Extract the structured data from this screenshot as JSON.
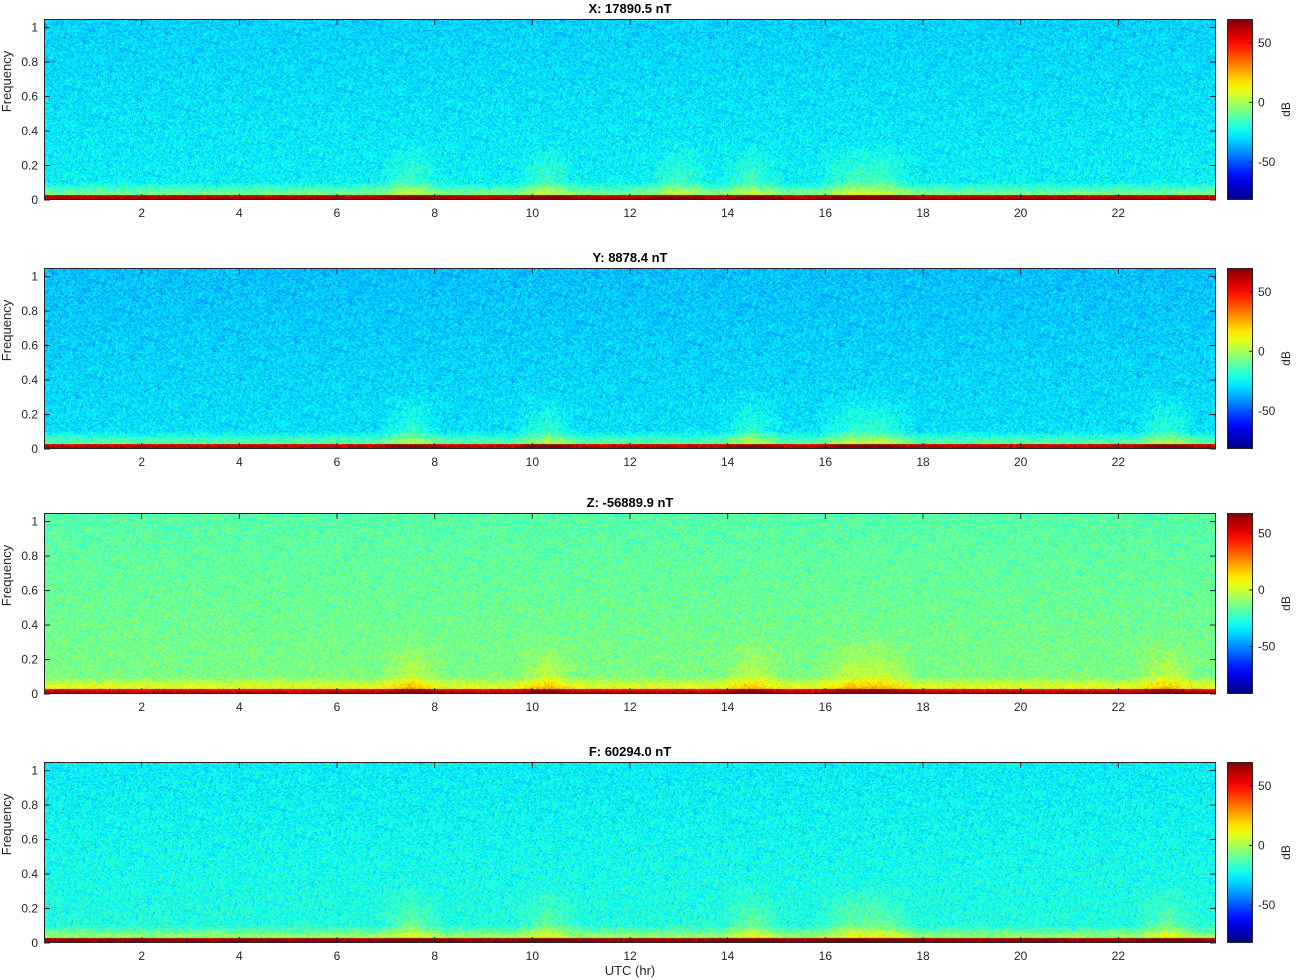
{
  "figure": {
    "xlabel": "UTC (hr)"
  },
  "chart_data": [
    {
      "type": "heatmap",
      "title": "X: 17890.5 nT",
      "xlabel": "",
      "ylabel": "Frequency",
      "xlim": [
        0,
        24
      ],
      "ylim": [
        0,
        1.05
      ],
      "x_ticks": [
        "2",
        "4",
        "6",
        "8",
        "10",
        "12",
        "14",
        "16",
        "18",
        "20",
        "22"
      ],
      "y_ticks": [
        "0",
        "0.2",
        "0.4",
        "0.6",
        "0.8",
        "1"
      ],
      "colorbar": {
        "label": "dB",
        "ticks": [
          "50",
          "0",
          "-50"
        ],
        "range": [
          -82,
          70
        ],
        "colormap": "jet"
      },
      "background_level_db": -25,
      "low_frequency_band": "strong (red) near 0",
      "enhanced_activity_hours": [
        7.5,
        10.3,
        13,
        14.5,
        16.5,
        17.2
      ]
    },
    {
      "type": "heatmap",
      "title": "Y: 8878.4 nT",
      "xlabel": "",
      "ylabel": "Frequency",
      "xlim": [
        0,
        24
      ],
      "ylim": [
        0,
        1.05
      ],
      "x_ticks": [
        "2",
        "4",
        "6",
        "8",
        "10",
        "12",
        "14",
        "16",
        "18",
        "20",
        "22"
      ],
      "y_ticks": [
        "0",
        "0.2",
        "0.4",
        "0.6",
        "0.8",
        "1"
      ],
      "colorbar": {
        "label": "dB",
        "ticks": [
          "50",
          "0",
          "-50"
        ],
        "range": [
          -82,
          70
        ],
        "colormap": "jet"
      },
      "background_level_db": -28,
      "low_frequency_band": "strong (red) near 0",
      "enhanced_activity_hours": [
        7.5,
        10.3,
        14.5,
        16.5,
        17.2,
        23
      ]
    },
    {
      "type": "heatmap",
      "title": "Z: -56889.9 nT",
      "xlabel": "",
      "ylabel": "Frequency",
      "xlim": [
        0,
        24
      ],
      "ylim": [
        0,
        1.05
      ],
      "x_ticks": [
        "2",
        "4",
        "6",
        "8",
        "10",
        "12",
        "14",
        "16",
        "18",
        "20",
        "22"
      ],
      "y_ticks": [
        "0",
        "0.2",
        "0.4",
        "0.6",
        "0.8",
        "1"
      ],
      "colorbar": {
        "label": "dB",
        "ticks": [
          "50",
          "0",
          "-50"
        ],
        "range": [
          -92,
          68
        ],
        "colormap": "jet"
      },
      "background_level_db": -12,
      "low_frequency_band": "orange/yellow near 0",
      "enhanced_activity_hours": [
        7.5,
        10.3,
        14.5,
        16.5,
        17.2,
        23
      ]
    },
    {
      "type": "heatmap",
      "title": "F: 60294.0 nT",
      "xlabel": "UTC (hr)",
      "ylabel": "Frequency",
      "xlim": [
        0,
        24
      ],
      "ylim": [
        0,
        1.05
      ],
      "x_ticks": [
        "2",
        "4",
        "6",
        "8",
        "10",
        "12",
        "14",
        "16",
        "18",
        "20",
        "22"
      ],
      "y_ticks": [
        "0",
        "0.2",
        "0.4",
        "0.6",
        "0.8",
        "1"
      ],
      "colorbar": {
        "label": "dB",
        "ticks": [
          "50",
          "0",
          "-50"
        ],
        "range": [
          -82,
          70
        ],
        "colormap": "jet"
      },
      "background_level_db": -20,
      "low_frequency_band": "strong (red) near 0",
      "enhanced_activity_hours": [
        7.5,
        10.3,
        14.5,
        16.5,
        17.2,
        23
      ]
    }
  ]
}
